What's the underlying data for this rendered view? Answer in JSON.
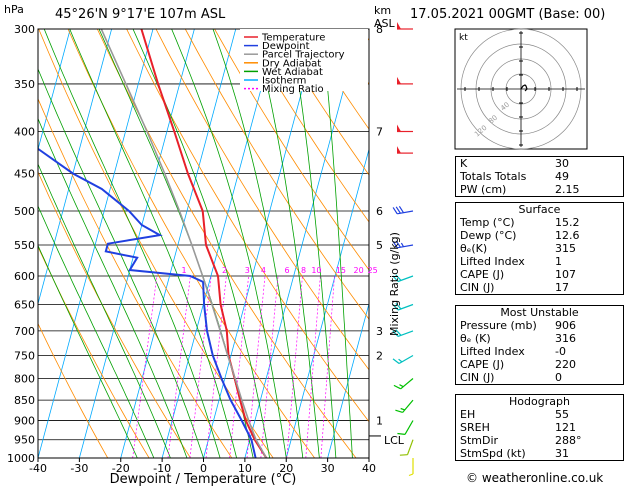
{
  "header": {
    "title": "45°26'N 9°17'E 107m ASL",
    "datetime": "17.05.2021 00GMT (Base: 00)",
    "y_unit_left": "hPa",
    "y_unit_right_1": "km",
    "y_unit_right_2": "ASL",
    "mixing_ratio_axis": "Mixing Ratio (g/kg)",
    "lcl_label": "LCL",
    "hodo_unit": "kt",
    "footer": "© weatheronline.co.uk"
  },
  "legend": [
    {
      "label": "Temperature",
      "color": "#e8202a"
    },
    {
      "label": "Dewpoint",
      "color": "#2040e0"
    },
    {
      "label": "Parcel Trajectory",
      "color": "#999999"
    },
    {
      "label": "Dry Adiabat",
      "color": "#ff8c00"
    },
    {
      "label": "Wet Adiabat",
      "color": "#00a000"
    },
    {
      "label": "Isotherm",
      "color": "#00aaff"
    },
    {
      "label": "Mixing Ratio",
      "color": "#ff00ff"
    }
  ],
  "chart_data": {
    "type": "line",
    "chart_kind": "skew-T log-P",
    "xlabel": "Dewpoint / Temperature (°C)",
    "ylabel": "hPa",
    "xlim": [
      -40,
      40
    ],
    "ylim": [
      1000,
      300
    ],
    "y_scale": "log",
    "x_ticks": [
      -40,
      -30,
      -20,
      -10,
      0,
      10,
      20,
      30,
      40
    ],
    "p_ticks": [
      300,
      350,
      400,
      450,
      500,
      550,
      600,
      650,
      700,
      750,
      800,
      850,
      900,
      950,
      1000
    ],
    "km_ticks": [
      {
        "p": 300,
        "km": "8"
      },
      {
        "p": 400,
        "km": "7"
      },
      {
        "p": 500,
        "km": "6"
      },
      {
        "p": 550,
        "km": "5"
      },
      {
        "p": 700,
        "km": "3"
      },
      {
        "p": 750,
        "km": "2"
      },
      {
        "p": 900,
        "km": "1"
      }
    ],
    "mixing_ratio_labels": [
      {
        "g": "1",
        "t": -16.5
      },
      {
        "g": "2",
        "t": -6.7
      },
      {
        "g": "3",
        "t": -1.2
      },
      {
        "g": "4",
        "t": 2.7
      },
      {
        "g": "6",
        "t": 8.4
      },
      {
        "g": "8",
        "t": 12.4
      },
      {
        "g": "10",
        "t": 15.5
      },
      {
        "g": "15",
        "t": 21.4
      },
      {
        "g": "20",
        "t": 25.7
      },
      {
        "g": "25",
        "t": 29.1
      }
    ],
    "mixing_ratio_label_p": 600,
    "series": [
      {
        "name": "Temperature",
        "color": "#e8202a",
        "points": [
          [
            1000,
            15.2
          ],
          [
            950,
            11.2
          ],
          [
            900,
            7.8
          ],
          [
            850,
            5.1
          ],
          [
            800,
            2.4
          ],
          [
            750,
            -0.6
          ],
          [
            700,
            -2.6
          ],
          [
            650,
            -5.8
          ],
          [
            600,
            -8.3
          ],
          [
            550,
            -13.2
          ],
          [
            500,
            -16.2
          ],
          [
            450,
            -22.2
          ],
          [
            400,
            -28.2
          ],
          [
            350,
            -35.2
          ],
          [
            300,
            -42.8
          ]
        ]
      },
      {
        "name": "Dewpoint",
        "color": "#2040e0",
        "points": [
          [
            1000,
            12.6
          ],
          [
            950,
            10.4
          ],
          [
            900,
            6.8
          ],
          [
            850,
            2.8
          ],
          [
            800,
            -0.8
          ],
          [
            750,
            -4.4
          ],
          [
            700,
            -7.4
          ],
          [
            650,
            -9.8
          ],
          [
            610,
            -11.5
          ],
          [
            600,
            -15
          ],
          [
            590,
            -30
          ],
          [
            570,
            -29
          ],
          [
            560,
            -37
          ],
          [
            548,
            -37
          ],
          [
            535,
            -25
          ],
          [
            520,
            -30
          ],
          [
            500,
            -34
          ],
          [
            470,
            -42
          ],
          [
            450,
            -50
          ],
          [
            420,
            -60
          ],
          [
            400,
            -63
          ],
          [
            350,
            -68
          ],
          [
            300,
            -73
          ]
        ]
      },
      {
        "name": "Parcel Trajectory",
        "color": "#999999",
        "points": [
          [
            1000,
            15.2
          ],
          [
            950,
            11.5
          ],
          [
            900,
            8.5
          ],
          [
            850,
            5.5
          ],
          [
            800,
            2.5
          ],
          [
            750,
            -0.8
          ],
          [
            700,
            -4.2
          ],
          [
            650,
            -7.9
          ],
          [
            600,
            -12.0
          ],
          [
            550,
            -16.6
          ],
          [
            500,
            -21.8
          ],
          [
            450,
            -27.8
          ],
          [
            400,
            -34.8
          ],
          [
            350,
            -43.0
          ],
          [
            300,
            -52.5
          ]
        ]
      }
    ],
    "lcl_p": 940,
    "wind_barbs": [
      {
        "p": 300,
        "kt": 50,
        "dir": 270,
        "color": "#e8202a"
      },
      {
        "p": 350,
        "kt": 50,
        "dir": 270,
        "color": "#e8202a"
      },
      {
        "p": 400,
        "kt": 50,
        "dir": 270,
        "color": "#e8202a"
      },
      {
        "p": 425,
        "kt": 50,
        "dir": 270,
        "color": "#e8202a"
      },
      {
        "p": 500,
        "kt": 30,
        "dir": 260,
        "color": "#2040e0"
      },
      {
        "p": 550,
        "kt": 25,
        "dir": 260,
        "color": "#2040e0"
      },
      {
        "p": 600,
        "kt": 20,
        "dir": 250,
        "color": "#00c0c0"
      },
      {
        "p": 650,
        "kt": 20,
        "dir": 250,
        "color": "#00c0c0"
      },
      {
        "p": 700,
        "kt": 20,
        "dir": 250,
        "color": "#00c0c0"
      },
      {
        "p": 750,
        "kt": 15,
        "dir": 240,
        "color": "#00c0c0"
      },
      {
        "p": 800,
        "kt": 15,
        "dir": 230,
        "color": "#00c000"
      },
      {
        "p": 850,
        "kt": 15,
        "dir": 220,
        "color": "#00c000"
      },
      {
        "p": 900,
        "kt": 10,
        "dir": 210,
        "color": "#00c000"
      },
      {
        "p": 950,
        "kt": 10,
        "dir": 200,
        "color": "#90c000"
      },
      {
        "p": 1000,
        "kt": 5,
        "dir": 180,
        "color": "#e0e000"
      }
    ]
  },
  "hodograph": {
    "ring_labels": [
      "40",
      "80",
      "120"
    ],
    "trace": [
      [
        0,
        0
      ],
      [
        2,
        3
      ],
      [
        4,
        4
      ],
      [
        5,
        3
      ],
      [
        6,
        0
      ],
      [
        4,
        -2
      ]
    ]
  },
  "indices": {
    "rows": [
      {
        "label": "K",
        "value": "30"
      },
      {
        "label": "Totals Totals",
        "value": "49"
      },
      {
        "label": "PW (cm)",
        "value": "2.15"
      }
    ]
  },
  "surface": {
    "title": "Surface",
    "rows": [
      {
        "label": "Temp (°C)",
        "value": "15.2"
      },
      {
        "label": "Dewp (°C)",
        "value": "12.6"
      },
      {
        "label": "θₑ(K)",
        "value": "315"
      },
      {
        "label": "Lifted Index",
        "value": "1"
      },
      {
        "label": "CAPE (J)",
        "value": "107"
      },
      {
        "label": "CIN (J)",
        "value": "17"
      }
    ]
  },
  "most_unstable": {
    "title": "Most Unstable",
    "rows": [
      {
        "label": "Pressure (mb)",
        "value": "906"
      },
      {
        "label": "θₑ (K)",
        "value": "316"
      },
      {
        "label": "Lifted Index",
        "value": "-0"
      },
      {
        "label": "CAPE (J)",
        "value": "220"
      },
      {
        "label": "CIN (J)",
        "value": "0"
      }
    ]
  },
  "hodograph_table": {
    "title": "Hodograph",
    "rows": [
      {
        "label": "EH",
        "value": "55"
      },
      {
        "label": "SREH",
        "value": "121"
      },
      {
        "label": "StmDir",
        "value": "288°"
      },
      {
        "label": "StmSpd (kt)",
        "value": "31"
      }
    ]
  }
}
